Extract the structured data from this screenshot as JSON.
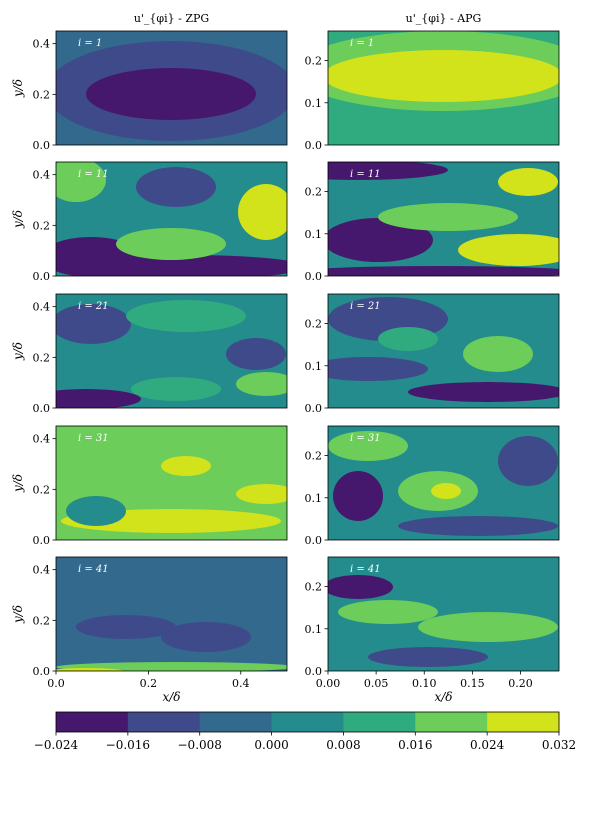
{
  "figure": {
    "column_titles": [
      "u'_{φi} - ZPG",
      "u'_{φi} - APG"
    ],
    "xlabel": "x/δ",
    "ylabel": "y/δ"
  },
  "chart_data": [
    {
      "type": "heatmap",
      "panel": "ZPG i=1",
      "title": "u'_{φi} - ZPG",
      "annotation": "i = 1",
      "xlim": [
        0,
        0.5
      ],
      "ylim": [
        0,
        0.45
      ],
      "ylabel": "y/δ",
      "yticks": [
        0.0,
        0.2,
        0.4
      ]
    },
    {
      "type": "heatmap",
      "panel": "APG i=1",
      "title": "u'_{φi} - APG",
      "annotation": "i = 1",
      "xlim": [
        0,
        0.24
      ],
      "ylim": [
        0,
        0.27
      ],
      "yticks": [
        0.0,
        0.1,
        0.2
      ]
    },
    {
      "type": "heatmap",
      "panel": "ZPG i=11",
      "annotation": "i = 11",
      "xlim": [
        0,
        0.5
      ],
      "ylim": [
        0,
        0.45
      ],
      "ylabel": "y/δ",
      "yticks": [
        0.0,
        0.2,
        0.4
      ]
    },
    {
      "type": "heatmap",
      "panel": "APG i=11",
      "annotation": "i = 11",
      "xlim": [
        0,
        0.24
      ],
      "ylim": [
        0,
        0.27
      ],
      "yticks": [
        0.0,
        0.1,
        0.2
      ]
    },
    {
      "type": "heatmap",
      "panel": "ZPG i=21",
      "annotation": "i = 21",
      "xlim": [
        0,
        0.5
      ],
      "ylim": [
        0,
        0.45
      ],
      "ylabel": "y/δ",
      "yticks": [
        0.0,
        0.2,
        0.4
      ]
    },
    {
      "type": "heatmap",
      "panel": "APG i=21",
      "annotation": "i = 21",
      "xlim": [
        0,
        0.24
      ],
      "ylim": [
        0,
        0.27
      ],
      "yticks": [
        0.0,
        0.1,
        0.2
      ]
    },
    {
      "type": "heatmap",
      "panel": "ZPG i=31",
      "annotation": "i = 31",
      "xlim": [
        0,
        0.5
      ],
      "ylim": [
        0,
        0.45
      ],
      "ylabel": "y/δ",
      "yticks": [
        0.0,
        0.2,
        0.4
      ]
    },
    {
      "type": "heatmap",
      "panel": "APG i=31",
      "annotation": "i = 31",
      "xlim": [
        0,
        0.24
      ],
      "ylim": [
        0,
        0.27
      ],
      "yticks": [
        0.0,
        0.1,
        0.2
      ]
    },
    {
      "type": "heatmap",
      "panel": "ZPG i=41",
      "annotation": "i = 41",
      "xlim": [
        0,
        0.5
      ],
      "ylim": [
        0,
        0.45
      ],
      "ylabel": "y/δ",
      "yticks": [
        0.0,
        0.2,
        0.4
      ],
      "xlabel": "x/δ",
      "xticks": [
        0.0,
        0.2,
        0.4
      ]
    },
    {
      "type": "heatmap",
      "panel": "APG i=41",
      "annotation": "i = 41",
      "xlim": [
        0,
        0.24
      ],
      "ylim": [
        0,
        0.27
      ],
      "yticks": [
        0.0,
        0.1,
        0.2
      ],
      "xlabel": "x/δ",
      "xticks": [
        0.0,
        0.05,
        0.1,
        0.15,
        0.2
      ]
    }
  ],
  "colorbar": {
    "ticks": [
      "−0.024",
      "−0.016",
      "−0.008",
      "0.000",
      "0.008",
      "0.016",
      "0.024",
      "0.032"
    ],
    "colors": [
      "#46186d",
      "#3f4a8a",
      "#32698d",
      "#248c8c",
      "#2fab7f",
      "#6ccd5a",
      "#d2e21b"
    ]
  }
}
